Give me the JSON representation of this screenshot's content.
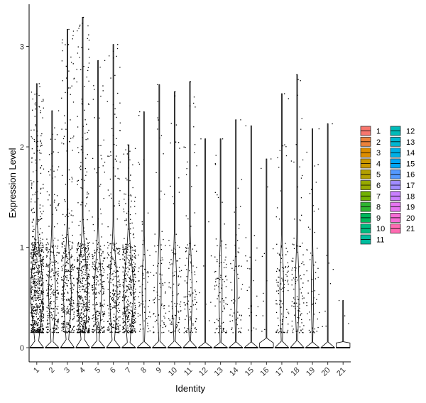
{
  "chart_data": {
    "type": "violin-jitter",
    "title": "",
    "xlabel": "Identity",
    "ylabel": "Expression Level",
    "categories": [
      "1",
      "2",
      "3",
      "4",
      "5",
      "6",
      "7",
      "8",
      "9",
      "10",
      "11",
      "12",
      "13",
      "14",
      "15",
      "16",
      "17",
      "18",
      "19",
      "20",
      "21"
    ],
    "ylim": [
      -0.15,
      3.45
    ],
    "yticks": [
      0,
      1,
      2,
      3
    ],
    "ymax_per_category": [
      2.63,
      2.36,
      3.17,
      3.29,
      2.86,
      3.02,
      2.02,
      2.35,
      2.62,
      2.55,
      2.65,
      2.08,
      2.08,
      2.27,
      2.21,
      1.88,
      2.53,
      2.72,
      2.18,
      2.23,
      0.47
    ],
    "density_scale_per_category": [
      1.0,
      0.55,
      0.62,
      0.8,
      0.55,
      0.6,
      0.75,
      0.3,
      0.3,
      0.35,
      0.35,
      0.04,
      0.25,
      0.2,
      0.1,
      0.06,
      0.3,
      0.3,
      0.18,
      0.05,
      0.02
    ],
    "jitter_points_per_category": [
      700,
      260,
      330,
      520,
      260,
      280,
      420,
      70,
      80,
      100,
      110,
      8,
      90,
      60,
      25,
      12,
      110,
      110,
      55,
      8,
      3
    ],
    "legend": {
      "title": "",
      "placement": "right",
      "columns": 2
    },
    "colors": [
      "#F8766D",
      "#EC823C",
      "#DD8D00",
      "#CA9700",
      "#B3A000",
      "#97A900",
      "#71B000",
      "#2EB531",
      "#00B85C",
      "#00BB80",
      "#00BC9E",
      "#00BBB9",
      "#00B7D1",
      "#00B0E6",
      "#00A6F6",
      "#5499FF",
      "#A08CFF",
      "#C97FFF",
      "#E675F0",
      "#F66DD5",
      "#FF6BB2"
    ],
    "grid": false
  }
}
